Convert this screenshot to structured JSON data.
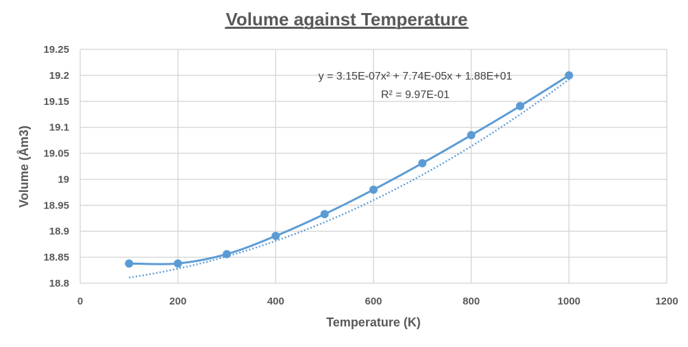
{
  "chart_data": {
    "type": "scatter",
    "title": "Volume against Temperature",
    "xlabel": "Temperature (K)",
    "ylabel": "Volume (Åm3)",
    "xlim": [
      0,
      1200
    ],
    "ylim": [
      18.8,
      19.25
    ],
    "x_ticks": [
      "0",
      "200",
      "400",
      "600",
      "800",
      "1000",
      "1200"
    ],
    "y_ticks": [
      "18.8",
      "18.85",
      "18.9",
      "18.95",
      "19",
      "19.05",
      "19.1",
      "19.15",
      "19.2",
      "19.25"
    ],
    "grid": true,
    "series": [
      {
        "name": "Volume",
        "color": "#5b9bd5",
        "style": "smoothed line with markers",
        "x": [
          100,
          200,
          300,
          400,
          500,
          600,
          700,
          800,
          900,
          1000
        ],
        "y": [
          18.838,
          18.838,
          18.856,
          18.891,
          18.933,
          18.98,
          19.031,
          19.085,
          19.141,
          19.2
        ]
      }
    ],
    "trendline": {
      "type": "polynomial",
      "order": 2,
      "style": "dotted",
      "color": "#5b9bd5",
      "coefficients": {
        "a": 3.15e-07,
        "b": 7.74e-05,
        "c": 18.8
      },
      "x_range": [
        100,
        1000
      ],
      "equation_text": "y = 3.15E-07x² + 7.74E-05x + 1.88E+01",
      "r2_text": "R² = 9.97E-01"
    }
  }
}
